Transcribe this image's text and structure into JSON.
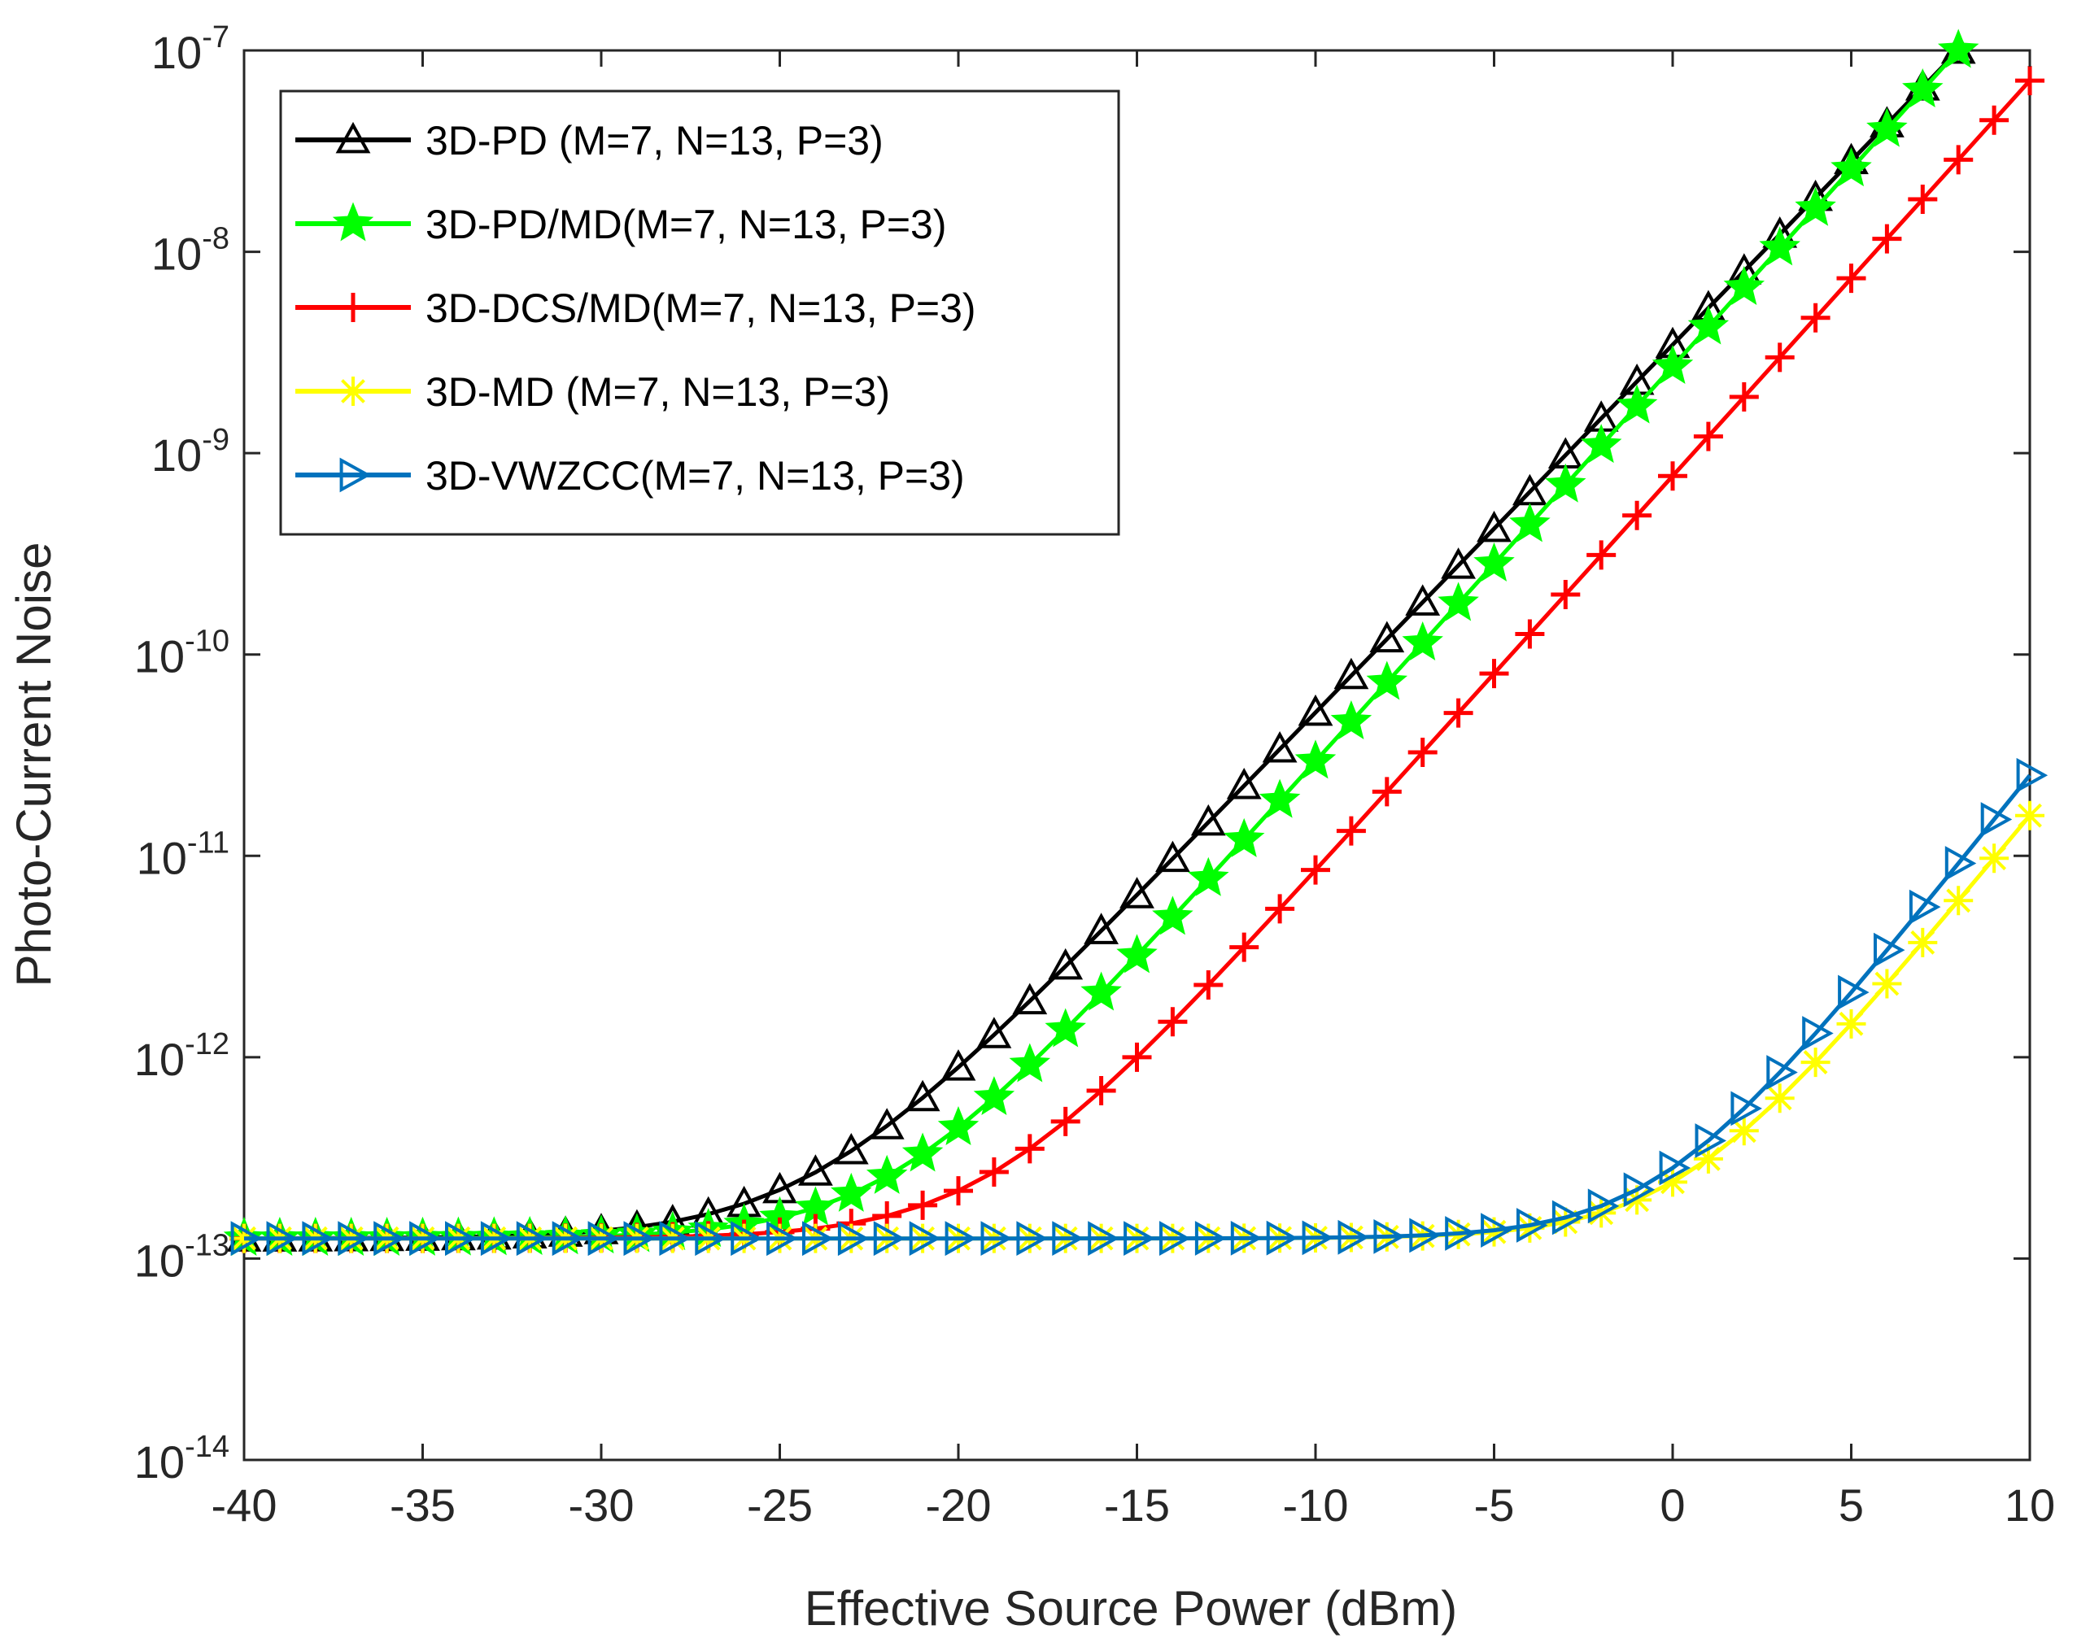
{
  "chart_data": {
    "type": "line",
    "title": "",
    "xlabel": "Effective Source Power (dBm)",
    "ylabel": "Photo-Current Noise",
    "x_scale": "linear",
    "y_scale": "log",
    "xlim": [
      -40,
      10
    ],
    "ylim_exponent": [
      -14,
      -7
    ],
    "x_ticks": [
      -40,
      -35,
      -30,
      -25,
      -20,
      -15,
      -10,
      -5,
      0,
      5,
      10
    ],
    "x_tick_labels": [
      "-40",
      "-35",
      "-30",
      "-25",
      "-20",
      "-15",
      "-10",
      "-5",
      "0",
      "5",
      "10"
    ],
    "y_ticks": [
      {
        "base": "10",
        "exponent": "-14"
      },
      {
        "base": "10",
        "exponent": "-13"
      },
      {
        "base": "10",
        "exponent": "-12"
      },
      {
        "base": "10",
        "exponent": "-11"
      },
      {
        "base": "10",
        "exponent": "-10"
      },
      {
        "base": "10",
        "exponent": "-9"
      },
      {
        "base": "10",
        "exponent": "-8"
      },
      {
        "base": "10",
        "exponent": "-7"
      }
    ],
    "grid": false,
    "legend_position": "top-left",
    "x_step": 1,
    "series": [
      {
        "name": "3D-PD (M=7, N=13, P=3)",
        "color": "#000000",
        "marker": "triangle-up",
        "model": {
          "floor_log10": -12.9,
          "anchors": [
            [
              -20,
              -12.05
            ],
            [
              8,
              -7.0
            ]
          ]
        },
        "x_end": 8
      },
      {
        "name": "3D-PD/MD(M=7, N=13, P=3)",
        "color": "#00ff00",
        "marker": "star",
        "model": {
          "floor_log10": -12.9,
          "anchors": [
            [
              -20,
              -12.35
            ],
            [
              8,
              -7.0
            ]
          ]
        },
        "x_end": 8
      },
      {
        "name": "3D-DCS/MD(M=7, N=13, P=3)",
        "color": "#ff0000",
        "marker": "plus",
        "model": {
          "floor_log10": -12.9,
          "anchors": [
            [
              -15,
              -12.0
            ],
            [
              10,
              -7.15
            ]
          ]
        },
        "x_end": 10
      },
      {
        "name": "3D-MD (M=7, N=13, P=3)",
        "color": "#ffff00",
        "marker": "asterisk",
        "model": {
          "floor_log10": -12.9,
          "anchors": [
            [
              0,
              -12.62
            ],
            [
              10,
              -10.8
            ]
          ]
        },
        "x_end": 10
      },
      {
        "name": "3D-VWZCC(M=7, N=13, P=3)",
        "color": "#0072bd",
        "marker": "triangle-right",
        "model": {
          "floor_log10": -12.9,
          "anchors": [
            [
              0,
              -12.55
            ],
            [
              10,
              -10.6
            ]
          ]
        },
        "x_end": 10
      }
    ]
  }
}
